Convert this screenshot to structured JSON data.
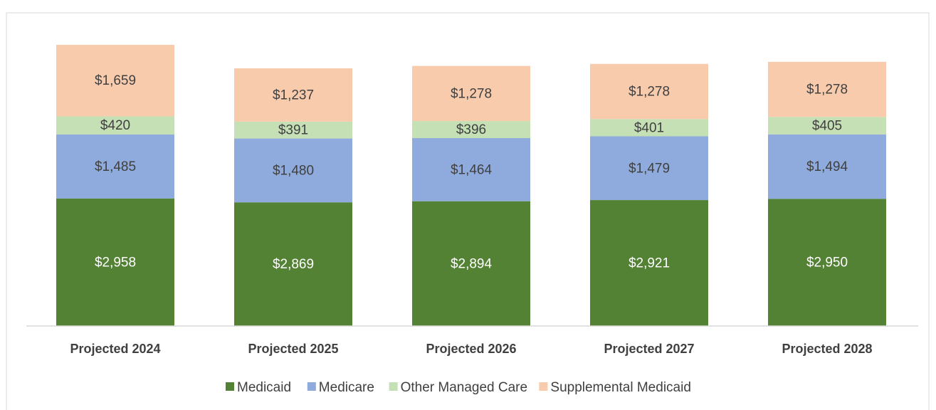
{
  "chart_data": {
    "type": "stacked_bar",
    "categories": [
      "Projected 2024",
      "Projected 2025",
      "Projected 2026",
      "Projected 2027",
      "Projected 2028"
    ],
    "series": [
      {
        "name": "Medicaid",
        "color": "#548235",
        "values": [
          2958,
          2869,
          2894,
          2921,
          2950
        ],
        "value_labels": [
          "$2,958",
          "$2,869",
          "$2,894",
          "$2,921",
          "$2,950"
        ]
      },
      {
        "name": "Medicare",
        "color": "#8faadc",
        "values": [
          1485,
          1480,
          1464,
          1479,
          1494
        ],
        "value_labels": [
          "$1,485",
          "$1,480",
          "$1,464",
          "$1,479",
          "$1,494"
        ]
      },
      {
        "name": "Other Managed Care",
        "color": "#c5e0b4",
        "values": [
          420,
          391,
          396,
          401,
          405
        ],
        "value_labels": [
          "$420",
          "$391",
          "$396",
          "$401",
          "$405"
        ]
      },
      {
        "name": "Supplemental Medicaid",
        "color": "#f8cbad",
        "values": [
          1659,
          1237,
          1278,
          1278,
          1278
        ],
        "value_labels": [
          "$1,659",
          "$1,237",
          "$1,278",
          "$1,278",
          "$1,278"
        ]
      }
    ],
    "ylim": [
      0,
      7000
    ],
    "legend": "bottom"
  }
}
